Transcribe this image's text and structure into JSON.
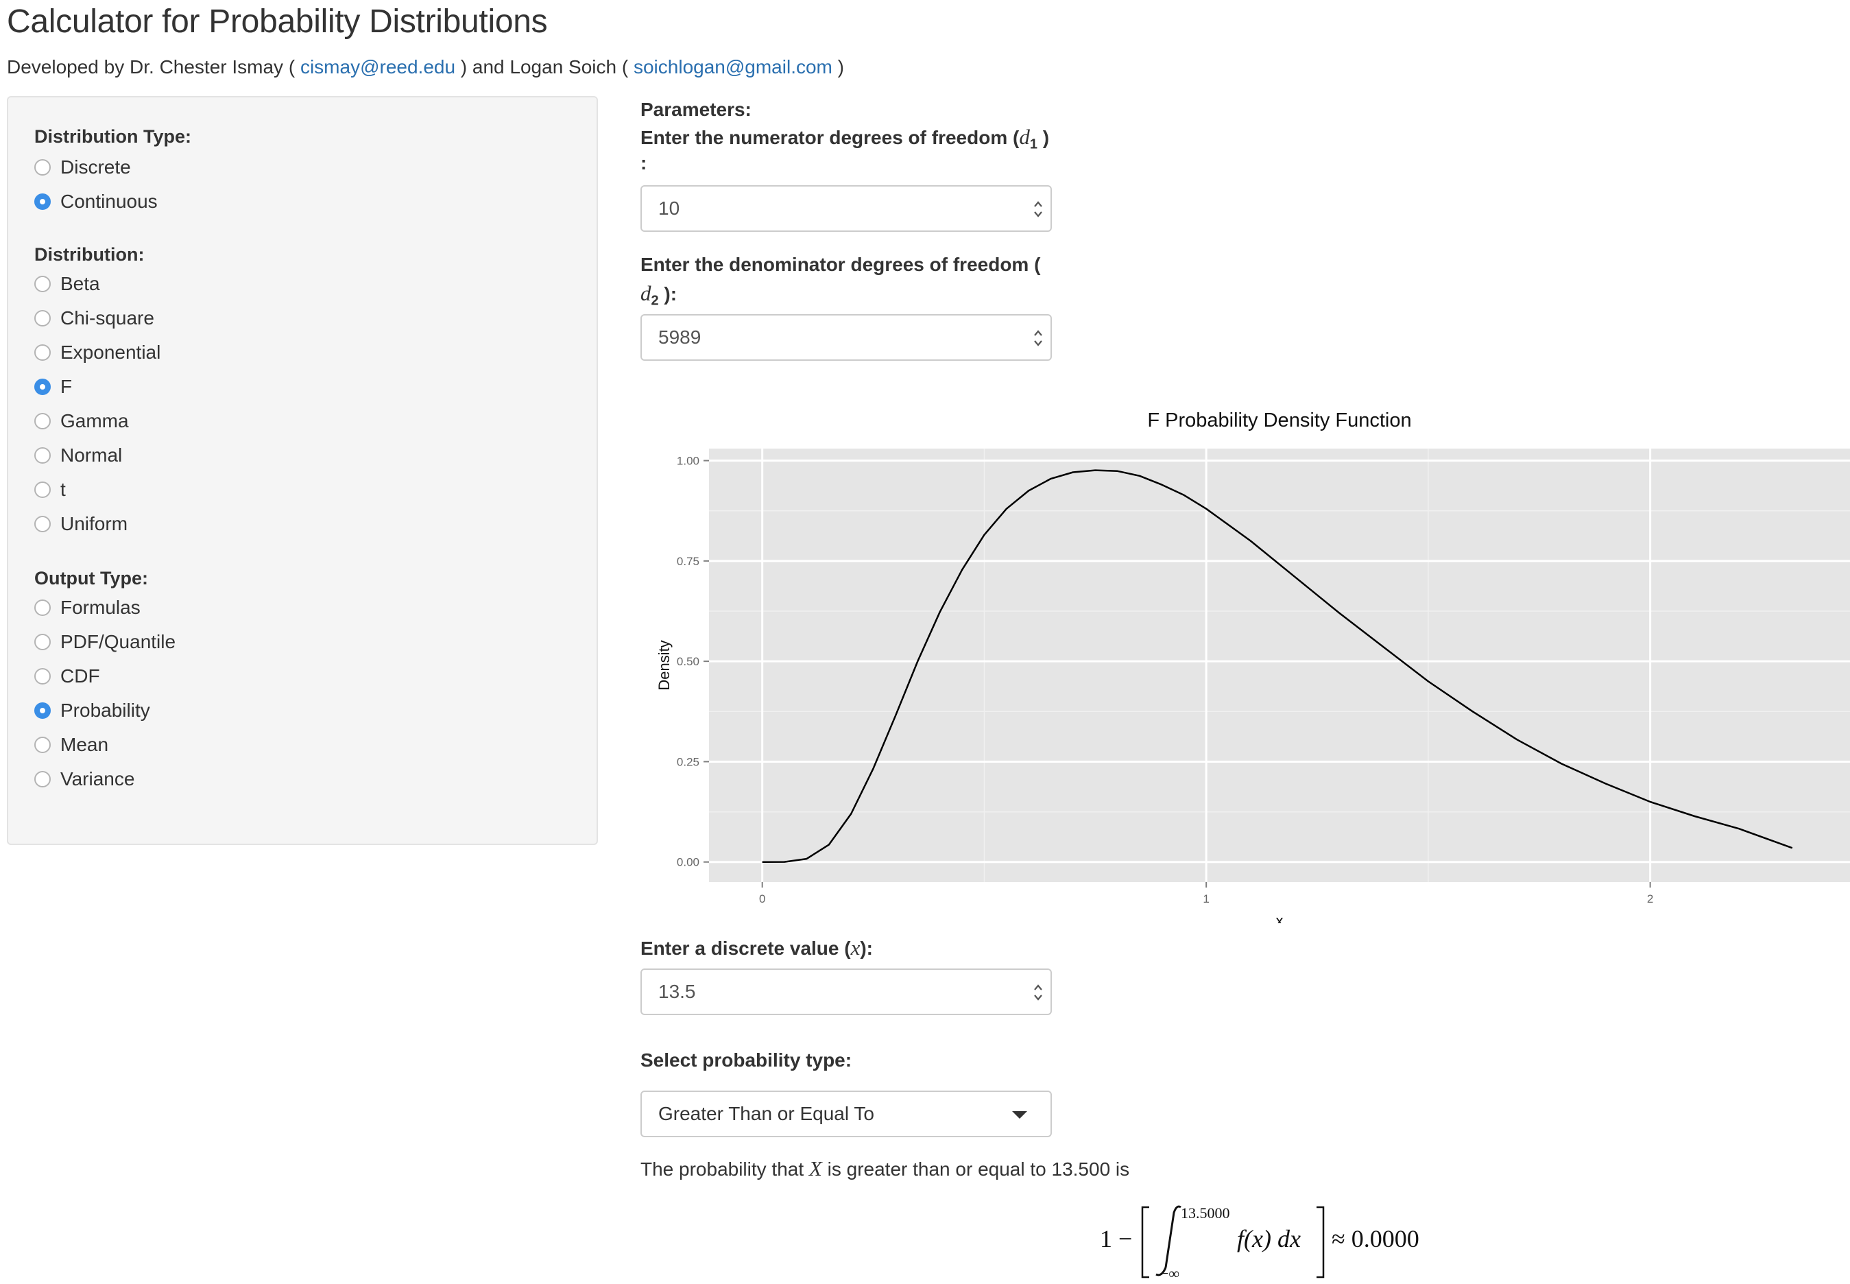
{
  "page": {
    "title": "Calculator for Probability Distributions",
    "developed_prefix": "Developed by Dr. Chester Ismay ( ",
    "email1": "cismay@reed.edu",
    "developed_mid": " ) and Logan Soich ( ",
    "email2": "soichlogan@gmail.com",
    "developed_suffix": " )"
  },
  "sidebar": {
    "distribution_type_label": "Distribution Type:",
    "distribution_types": [
      {
        "label": "Discrete",
        "checked": false
      },
      {
        "label": "Continuous",
        "checked": true
      }
    ],
    "distribution_label": "Distribution:",
    "distributions": [
      {
        "label": "Beta",
        "checked": false
      },
      {
        "label": "Chi-square",
        "checked": false
      },
      {
        "label": "Exponential",
        "checked": false
      },
      {
        "label": "F",
        "checked": true
      },
      {
        "label": "Gamma",
        "checked": false
      },
      {
        "label": "Normal",
        "checked": false
      },
      {
        "label": "t",
        "checked": false
      },
      {
        "label": "Uniform",
        "checked": false
      }
    ],
    "output_type_label": "Output Type:",
    "output_types": [
      {
        "label": "Formulas",
        "checked": false
      },
      {
        "label": "PDF/Quantile",
        "checked": false
      },
      {
        "label": "CDF",
        "checked": false
      },
      {
        "label": "Probability",
        "checked": true
      },
      {
        "label": "Mean",
        "checked": false
      },
      {
        "label": "Variance",
        "checked": false
      }
    ]
  },
  "params": {
    "heading": "Parameters:",
    "d1_label_pre": "Enter the numerator degrees of freedom (",
    "d1_symbol": "d",
    "d1_sub": "1",
    "d1_label_post": " )",
    "d1_label_colon": ":",
    "d1_value": "10",
    "d2_label_line1": "Enter the denominator degrees of freedom (",
    "d2_symbol": "d",
    "d2_sub": "2",
    "d2_label_post": " ):",
    "d2_value": "5989",
    "x_label_pre": "Enter a discrete value (",
    "x_symbol": "x",
    "x_label_post": "):",
    "x_value": "13.5",
    "prob_type_label": "Select probability type:",
    "prob_type_value": "Greater Than or Equal To"
  },
  "result": {
    "prefix": "The probability that ",
    "symbol": "X",
    "suffix": " is greater than or equal to 13.500 is",
    "formula_one_minus": "1 −",
    "formula_upper": "13.5000",
    "formula_lower": "−∞",
    "formula_integrand": "f(x) dx",
    "formula_approx": "≈ 0.0000"
  },
  "chart_data": {
    "type": "line",
    "title": "F Probability Density Function",
    "xlabel": "x",
    "ylabel": "Density",
    "xlim": [
      -0.12,
      2.45
    ],
    "ylim": [
      -0.05,
      1.03
    ],
    "x_ticks": [
      0,
      1,
      2
    ],
    "y_ticks": [
      "0.00",
      "0.25",
      "0.50",
      "0.75",
      "1.00"
    ],
    "grid": true,
    "background": "#e5e5e5",
    "line_color": "#000000",
    "x": [
      0.0,
      0.05,
      0.1,
      0.15,
      0.2,
      0.25,
      0.3,
      0.35,
      0.4,
      0.45,
      0.5,
      0.55,
      0.6,
      0.65,
      0.7,
      0.75,
      0.8,
      0.85,
      0.9,
      0.95,
      1.0,
      1.1,
      1.2,
      1.3,
      1.4,
      1.5,
      1.6,
      1.7,
      1.8,
      1.9,
      2.0,
      2.1,
      2.2,
      2.32
    ],
    "y": [
      0.0,
      0.0003,
      0.008,
      0.043,
      0.12,
      0.233,
      0.364,
      0.5,
      0.623,
      0.728,
      0.815,
      0.88,
      0.925,
      0.955,
      0.971,
      0.976,
      0.974,
      0.962,
      0.94,
      0.914,
      0.88,
      0.8,
      0.71,
      0.62,
      0.535,
      0.45,
      0.375,
      0.305,
      0.245,
      0.195,
      0.15,
      0.114,
      0.083,
      0.035
    ]
  }
}
